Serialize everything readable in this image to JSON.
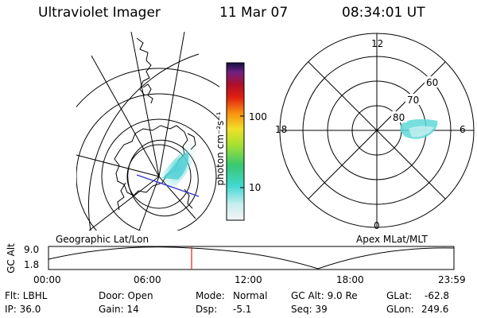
{
  "header": {
    "instrument": "Ultraviolet Imager",
    "date": "11 Mar 07",
    "time": "08:34:01 UT"
  },
  "colorbar": {
    "unit_label": "photon cm⁻²s⁻¹",
    "tick_100": "100",
    "tick_10": "10"
  },
  "polar_plot": {
    "mlt_top": "12",
    "mlt_left": "18",
    "mlt_right": "6",
    "mlt_bottom": "0",
    "lat_60": "60",
    "lat_70": "70",
    "lat_80": "80"
  },
  "panel_labels": {
    "left": "Geographic Lat/Lon",
    "right": "Apex MLat/MLT"
  },
  "altitude_plot": {
    "axis_label": "GC Alt",
    "y_top": "9.0",
    "y_bottom": "1.8",
    "x_ticks": [
      "00:00",
      "06:00",
      "12:00",
      "18:00",
      "23:59"
    ]
  },
  "info": {
    "filter": "Flt: LBHL",
    "door": "Door: Open",
    "mode_label": "Mode:",
    "mode_value": "Normal",
    "gc_alt": "GC Alt: 9.0 Re",
    "glat_label": "GLat:",
    "glat_value": "-62.8",
    "ip": "IP: 36.0",
    "gain": "Gain: 14",
    "dsp_label": "Dsp:",
    "dsp_value": "-5.1",
    "seq": "Seq: 39",
    "glon_label": "GLon:",
    "glon_value": "249.6"
  },
  "colors": {
    "aurora": "#5fd8d8",
    "track_marker": "#e0201a",
    "line": "#000000"
  }
}
